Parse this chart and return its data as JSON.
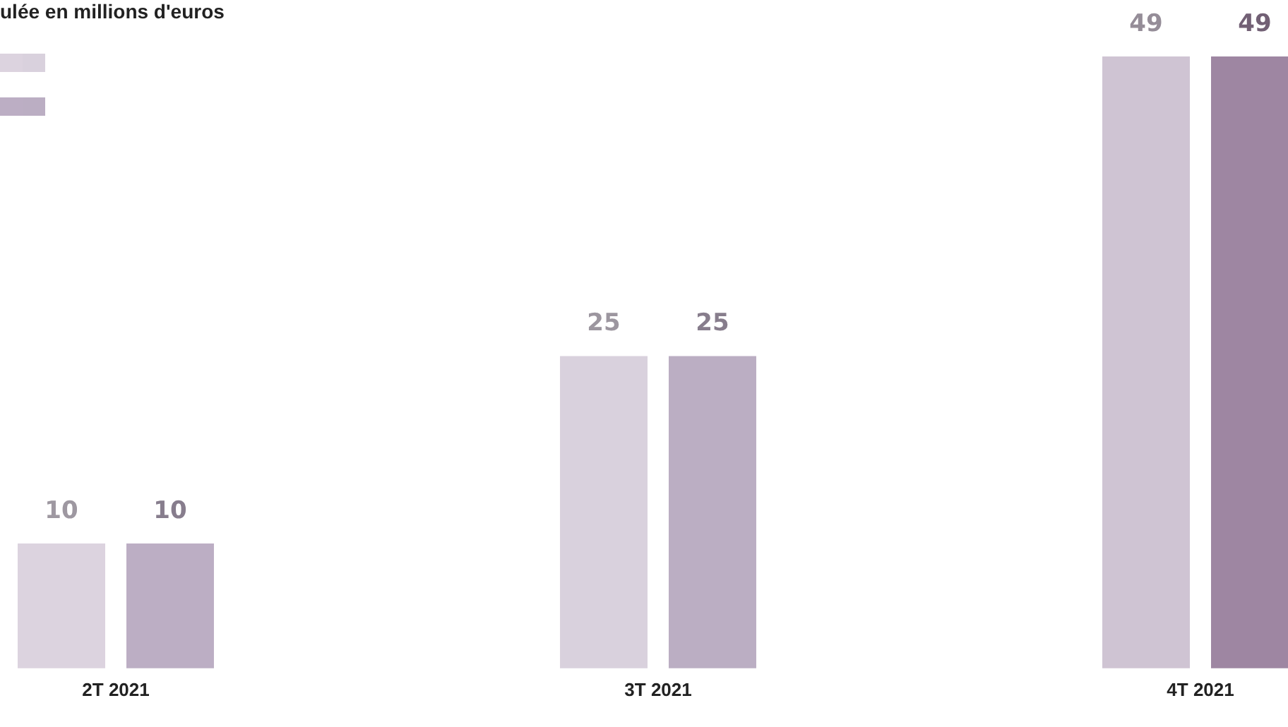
{
  "chart_data": {
    "type": "bar",
    "title": "ulée en millions d'euros",
    "categories": [
      "2T 2021",
      "3T 2021",
      "4T 2021"
    ],
    "series": [
      {
        "colors": [
          "#dcd3df",
          "#d9d1dd",
          "#cfc4d3"
        ],
        "values": [
          10,
          25,
          49
        ]
      },
      {
        "colors": [
          "#bcaec4",
          "#bbaec3",
          "#9e86a2"
        ],
        "values": [
          10,
          25,
          49
        ]
      }
    ],
    "data_labels": true,
    "legend": false,
    "grid": false
  }
}
